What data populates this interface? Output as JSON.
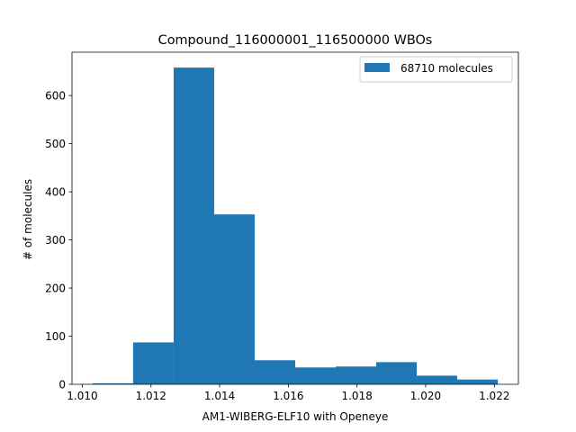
{
  "chart_data": {
    "type": "bar",
    "title": "Compound_116000001_116500000 WBOs",
    "xlabel": "AM1-WIBERG-ELF10 with Openeye",
    "ylabel": "# of molecules",
    "xlim": [
      1.0097,
      1.0227
    ],
    "ylim": [
      0,
      690
    ],
    "xticks": [
      1.01,
      1.012,
      1.014,
      1.016,
      1.018,
      1.02,
      1.022
    ],
    "xtick_labels": [
      "1.010",
      "1.012",
      "1.014",
      "1.016",
      "1.018",
      "1.020",
      "1.022"
    ],
    "yticks": [
      0,
      100,
      200,
      300,
      400,
      500,
      600
    ],
    "ytick_labels": [
      "0",
      "100",
      "200",
      "300",
      "400",
      "500",
      "600"
    ],
    "grid": false,
    "legend_position": "upper right",
    "series": [
      {
        "name": "68710 molecules",
        "color": "#1f77b4",
        "bin_edges": [
          1.0103,
          1.01148,
          1.01266,
          1.01384,
          1.01502,
          1.0162,
          1.01738,
          1.01856,
          1.01974,
          1.02092,
          1.0221
        ],
        "counts": [
          2,
          87,
          658,
          353,
          50,
          35,
          37,
          46,
          18,
          10
        ]
      }
    ]
  }
}
